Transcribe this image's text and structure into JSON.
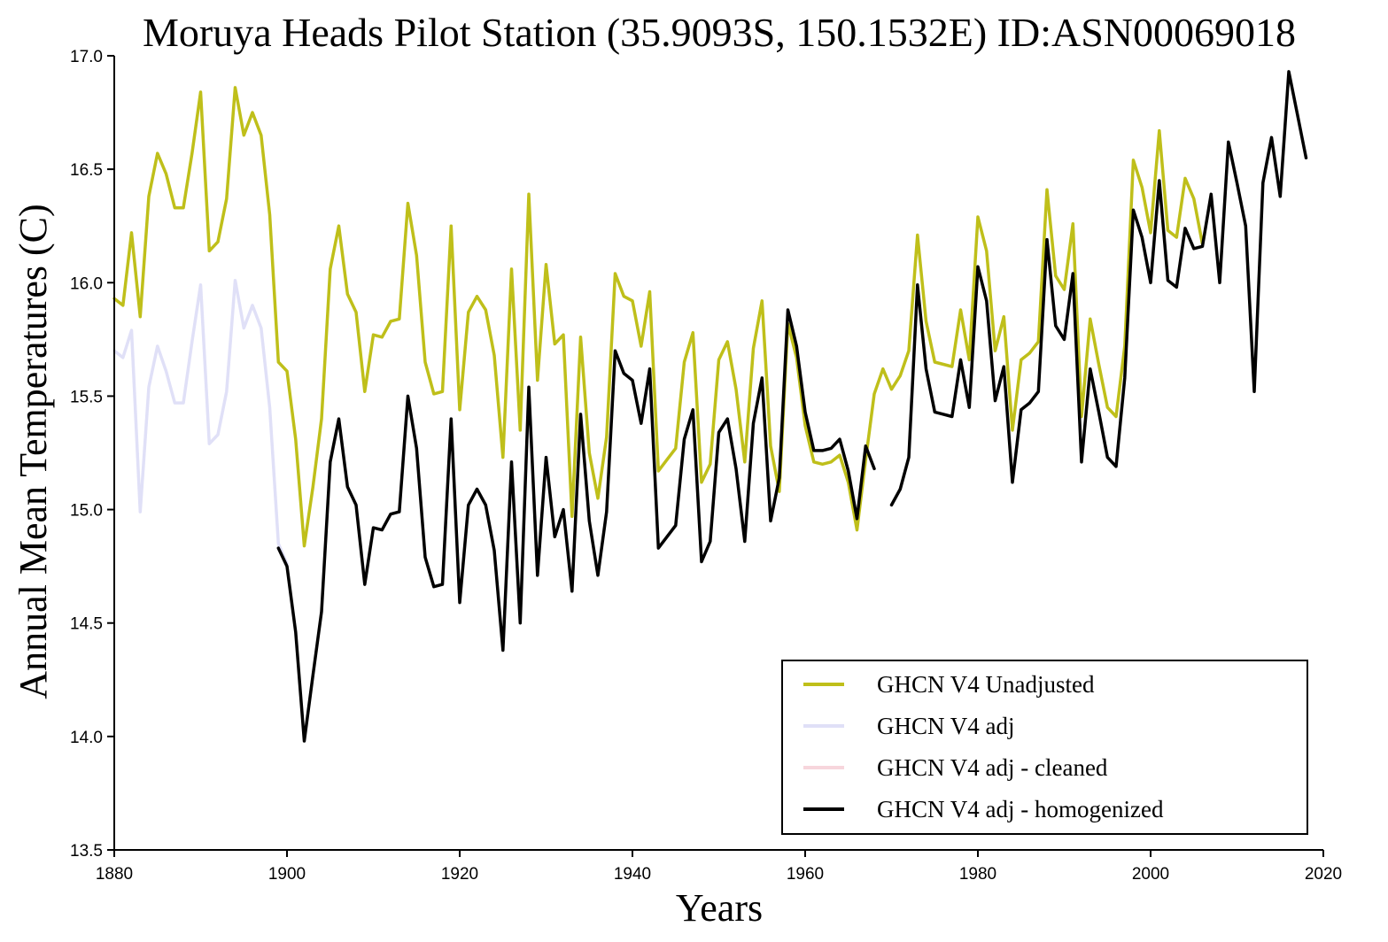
{
  "chart_data": {
    "type": "line",
    "title": "Moruya Heads Pilot Station (35.9093S, 150.1532E) ID:ASN00069018",
    "xlabel": "Years",
    "ylabel": "Annual Mean Temperatures (C)",
    "xlim": [
      1880,
      2020
    ],
    "ylim": [
      13.5,
      17.0
    ],
    "xticks": [
      1880,
      1900,
      1920,
      1940,
      1960,
      1980,
      2000,
      2020
    ],
    "xtick_labels": [
      "1880",
      "1900",
      "1920",
      "1940",
      "1960",
      "1980",
      "2000",
      "2020"
    ],
    "yticks": [
      13.5,
      14.0,
      14.5,
      15.0,
      15.5,
      16.0,
      16.5,
      17.0
    ],
    "ytick_labels": [
      "13.5",
      "14.0",
      "14.5",
      "15.0",
      "15.5",
      "16.0",
      "16.5",
      "17.0"
    ],
    "grid": false,
    "legend_position": "bottom-right",
    "series": [
      {
        "name": "GHCN V4 Unadjusted",
        "color": "#bfbf1a",
        "points": [
          [
            1880,
            15.93
          ],
          [
            1881,
            15.9
          ],
          [
            1882,
            16.22
          ],
          [
            1883,
            15.85
          ],
          [
            1884,
            16.38
          ],
          [
            1885,
            16.57
          ],
          [
            1886,
            16.48
          ],
          [
            1887,
            16.33
          ],
          [
            1888,
            16.33
          ],
          [
            1889,
            16.57
          ],
          [
            1890,
            16.84
          ],
          [
            1891,
            16.14
          ],
          [
            1892,
            16.18
          ],
          [
            1893,
            16.37
          ],
          [
            1894,
            16.86
          ],
          [
            1895,
            16.65
          ],
          [
            1896,
            16.75
          ],
          [
            1897,
            16.65
          ],
          [
            1898,
            16.3
          ],
          [
            1899,
            15.65
          ],
          [
            1900,
            15.61
          ],
          [
            1901,
            15.31
          ],
          [
            1902,
            14.84
          ],
          [
            1903,
            15.1
          ],
          [
            1904,
            15.4
          ],
          [
            1905,
            16.06
          ],
          [
            1906,
            16.25
          ],
          [
            1907,
            15.95
          ],
          [
            1908,
            15.87
          ],
          [
            1909,
            15.52
          ],
          [
            1910,
            15.77
          ],
          [
            1911,
            15.76
          ],
          [
            1912,
            15.83
          ],
          [
            1913,
            15.84
          ],
          [
            1914,
            16.35
          ],
          [
            1915,
            16.12
          ],
          [
            1916,
            15.65
          ],
          [
            1917,
            15.51
          ],
          [
            1918,
            15.52
          ],
          [
            1919,
            16.25
          ],
          [
            1920,
            15.44
          ],
          [
            1921,
            15.87
          ],
          [
            1922,
            15.94
          ],
          [
            1923,
            15.88
          ],
          [
            1924,
            15.68
          ],
          [
            1925,
            15.23
          ],
          [
            1926,
            16.06
          ],
          [
            1927,
            15.35
          ],
          [
            1928,
            16.39
          ],
          [
            1929,
            15.57
          ],
          [
            1930,
            16.08
          ],
          [
            1931,
            15.73
          ],
          [
            1932,
            15.77
          ],
          [
            1933,
            14.97
          ],
          [
            1934,
            15.76
          ],
          [
            1935,
            15.25
          ],
          [
            1936,
            15.05
          ],
          [
            1937,
            15.32
          ],
          [
            1938,
            16.04
          ],
          [
            1939,
            15.94
          ],
          [
            1940,
            15.92
          ],
          [
            1941,
            15.72
          ],
          [
            1942,
            15.96
          ],
          [
            1943,
            15.17
          ],
          [
            1944,
            15.22
          ],
          [
            1945,
            15.27
          ],
          [
            1946,
            15.65
          ],
          [
            1947,
            15.78
          ],
          [
            1948,
            15.12
          ],
          [
            1949,
            15.2
          ],
          [
            1950,
            15.66
          ],
          [
            1951,
            15.74
          ],
          [
            1952,
            15.53
          ],
          [
            1953,
            15.21
          ],
          [
            1954,
            15.71
          ],
          [
            1955,
            15.92
          ],
          [
            1956,
            15.28
          ],
          [
            1957,
            15.08
          ],
          [
            1958,
            15.82
          ],
          [
            1959,
            15.67
          ],
          [
            1960,
            15.37
          ],
          [
            1961,
            15.21
          ],
          [
            1962,
            15.2
          ],
          [
            1963,
            15.21
          ],
          [
            1964,
            15.24
          ],
          [
            1965,
            15.12
          ],
          [
            1966,
            14.91
          ],
          [
            1967,
            15.22
          ],
          [
            1968,
            15.51
          ],
          [
            1969,
            15.62
          ],
          [
            1970,
            15.53
          ],
          [
            1971,
            15.59
          ],
          [
            1972,
            15.7
          ],
          [
            1973,
            16.21
          ],
          [
            1974,
            15.83
          ],
          [
            1975,
            15.65
          ],
          [
            1976,
            15.64
          ],
          [
            1977,
            15.63
          ],
          [
            1978,
            15.88
          ],
          [
            1979,
            15.66
          ],
          [
            1980,
            16.29
          ],
          [
            1981,
            16.14
          ],
          [
            1982,
            15.7
          ],
          [
            1983,
            15.85
          ],
          [
            1984,
            15.35
          ],
          [
            1985,
            15.66
          ],
          [
            1986,
            15.69
          ],
          [
            1987,
            15.74
          ],
          [
            1988,
            16.41
          ],
          [
            1989,
            16.03
          ],
          [
            1990,
            15.97
          ],
          [
            1991,
            16.26
          ],
          [
            1992,
            15.41
          ],
          [
            1993,
            15.84
          ],
          [
            1994,
            15.64
          ],
          [
            1995,
            15.45
          ],
          [
            1996,
            15.41
          ],
          [
            1997,
            15.72
          ],
          [
            1998,
            16.54
          ],
          [
            1999,
            16.42
          ],
          [
            2000,
            16.22
          ],
          [
            2001,
            16.67
          ],
          [
            2002,
            16.23
          ],
          [
            2003,
            16.2
          ],
          [
            2004,
            16.46
          ],
          [
            2005,
            16.37
          ],
          [
            2006,
            16.17
          ]
        ]
      },
      {
        "name": "GHCN V4 adj",
        "color": "#e0e0f7",
        "points": [
          [
            1880,
            15.7
          ],
          [
            1881,
            15.67
          ],
          [
            1882,
            15.79
          ],
          [
            1883,
            14.99
          ],
          [
            1884,
            15.54
          ],
          [
            1885,
            15.72
          ],
          [
            1886,
            15.61
          ],
          [
            1887,
            15.47
          ],
          [
            1888,
            15.47
          ],
          [
            1889,
            15.74
          ],
          [
            1890,
            15.99
          ],
          [
            1891,
            15.29
          ],
          [
            1892,
            15.33
          ],
          [
            1893,
            15.52
          ],
          [
            1894,
            16.01
          ],
          [
            1895,
            15.8
          ],
          [
            1896,
            15.9
          ],
          [
            1897,
            15.8
          ],
          [
            1898,
            15.45
          ],
          [
            1899,
            14.85
          ],
          [
            1900,
            14.76
          ]
        ]
      },
      {
        "name": "GHCN V4 adj - cleaned",
        "color": "#f7d6dc",
        "points": []
      },
      {
        "name": "GHCN V4 adj - homogenized",
        "color": "#000000",
        "segments": [
          [
            [
              1899,
              14.83
            ],
            [
              1900,
              14.75
            ],
            [
              1901,
              14.46
            ],
            [
              1902,
              13.98
            ],
            [
              1903,
              14.27
            ],
            [
              1904,
              14.55
            ],
            [
              1905,
              15.21
            ],
            [
              1906,
              15.4
            ],
            [
              1907,
              15.1
            ],
            [
              1908,
              15.02
            ],
            [
              1909,
              14.67
            ],
            [
              1910,
              14.92
            ],
            [
              1911,
              14.91
            ],
            [
              1912,
              14.98
            ],
            [
              1913,
              14.99
            ],
            [
              1914,
              15.5
            ],
            [
              1915,
              15.27
            ],
            [
              1916,
              14.79
            ],
            [
              1917,
              14.66
            ],
            [
              1918,
              14.67
            ],
            [
              1919,
              15.4
            ],
            [
              1920,
              14.59
            ],
            [
              1921,
              15.02
            ],
            [
              1922,
              15.09
            ],
            [
              1923,
              15.02
            ],
            [
              1924,
              14.82
            ],
            [
              1925,
              14.38
            ],
            [
              1926,
              15.21
            ],
            [
              1927,
              14.5
            ],
            [
              1928,
              15.54
            ],
            [
              1929,
              14.71
            ],
            [
              1930,
              15.23
            ],
            [
              1931,
              14.88
            ],
            [
              1932,
              15.0
            ],
            [
              1933,
              14.64
            ],
            [
              1934,
              15.42
            ],
            [
              1935,
              14.95
            ],
            [
              1936,
              14.71
            ],
            [
              1937,
              14.99
            ],
            [
              1938,
              15.7
            ],
            [
              1939,
              15.6
            ],
            [
              1940,
              15.57
            ],
            [
              1941,
              15.38
            ],
            [
              1942,
              15.62
            ],
            [
              1943,
              14.83
            ],
            [
              1944,
              14.88
            ],
            [
              1945,
              14.93
            ],
            [
              1946,
              15.31
            ],
            [
              1947,
              15.44
            ],
            [
              1948,
              14.77
            ],
            [
              1949,
              14.86
            ],
            [
              1950,
              15.34
            ],
            [
              1951,
              15.4
            ],
            [
              1952,
              15.18
            ],
            [
              1953,
              14.86
            ],
            [
              1954,
              15.38
            ],
            [
              1955,
              15.58
            ],
            [
              1956,
              14.95
            ],
            [
              1957,
              15.14
            ],
            [
              1958,
              15.88
            ],
            [
              1959,
              15.72
            ],
            [
              1960,
              15.43
            ],
            [
              1961,
              15.26
            ],
            [
              1962,
              15.26
            ],
            [
              1963,
              15.27
            ],
            [
              1964,
              15.31
            ],
            [
              1965,
              15.17
            ],
            [
              1966,
              14.96
            ],
            [
              1967,
              15.28
            ],
            [
              1968,
              15.18
            ]
          ],
          [
            [
              1970,
              15.02
            ],
            [
              1971,
              15.09
            ],
            [
              1972,
              15.23
            ],
            [
              1973,
              15.99
            ],
            [
              1974,
              15.62
            ],
            [
              1975,
              15.43
            ],
            [
              1976,
              15.42
            ],
            [
              1977,
              15.41
            ],
            [
              1978,
              15.66
            ],
            [
              1979,
              15.45
            ],
            [
              1980,
              16.07
            ],
            [
              1981,
              15.92
            ],
            [
              1982,
              15.48
            ],
            [
              1983,
              15.63
            ],
            [
              1984,
              15.12
            ],
            [
              1985,
              15.44
            ],
            [
              1986,
              15.47
            ],
            [
              1987,
              15.52
            ],
            [
              1988,
              16.19
            ],
            [
              1989,
              15.81
            ],
            [
              1990,
              15.75
            ],
            [
              1991,
              16.04
            ],
            [
              1992,
              15.21
            ],
            [
              1993,
              15.62
            ],
            [
              1994,
              15.43
            ],
            [
              1995,
              15.23
            ],
            [
              1996,
              15.19
            ],
            [
              1997,
              15.58
            ],
            [
              1998,
              16.32
            ],
            [
              1999,
              16.2
            ],
            [
              2000,
              16.0
            ],
            [
              2001,
              16.45
            ],
            [
              2002,
              16.01
            ],
            [
              2003,
              15.98
            ],
            [
              2004,
              16.24
            ],
            [
              2005,
              16.15
            ],
            [
              2006,
              16.16
            ],
            [
              2007,
              16.39
            ],
            [
              2008,
              16.0
            ],
            [
              2009,
              16.62
            ],
            [
              2010,
              16.44
            ],
            [
              2011,
              16.25
            ],
            [
              2012,
              15.52
            ],
            [
              2013,
              16.44
            ],
            [
              2014,
              16.64
            ],
            [
              2015,
              16.38
            ],
            [
              2016,
              16.93
            ],
            [
              2017,
              16.74
            ],
            [
              2018,
              16.55
            ]
          ]
        ]
      }
    ]
  }
}
